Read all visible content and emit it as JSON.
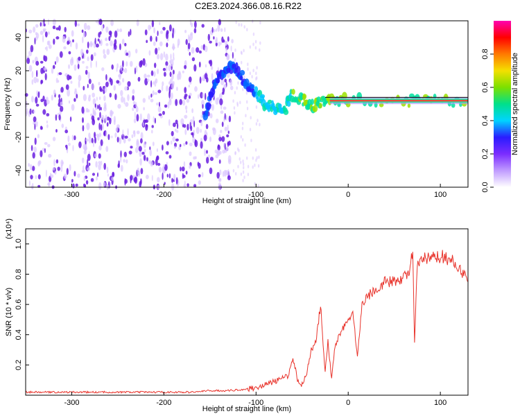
{
  "figure_title": "C2E3.2024.366.08.16.R22",
  "colors": {
    "spec_dark": "#6a1fe0",
    "spec_light": "#dcc8ff",
    "snr_line": "#e8322a"
  },
  "chart_data": [
    {
      "type": "heatmap",
      "title": "",
      "xlabel": "Height of straight line (km)",
      "ylabel": "Frequency (Hz)",
      "xlim": [
        -350,
        130
      ],
      "ylim": [
        -50,
        50
      ],
      "xticks": [
        -300,
        -200,
        -100,
        0,
        100
      ],
      "yticks": [
        -40,
        -20,
        0,
        20,
        40
      ],
      "grid": false,
      "colorbar": {
        "label": "Normalized spectral amplitude",
        "range": [
          0,
          1
        ],
        "ticks": [
          "0.0",
          "0.2",
          "0.4",
          "0.6",
          "0.8"
        ],
        "tick_values": [
          0.0,
          0.2,
          0.4,
          0.6,
          0.8
        ],
        "stops": [
          "#ffffff",
          "#c09bff",
          "#7b2cff",
          "#2a1cff",
          "#00d4ff",
          "#00e08a",
          "#7ce000",
          "#f4e000",
          "#ff7a00",
          "#ff0000",
          "#ff00b0"
        ]
      },
      "features": {
        "noise_region_x": [
          -350,
          -125
        ],
        "sparse_noise_x": [
          -125,
          -95
        ],
        "ridge": [
          [
            -155,
            -8
          ],
          [
            -148,
            8
          ],
          [
            -140,
            18
          ],
          [
            -130,
            22
          ],
          [
            -120,
            20
          ],
          [
            -110,
            12
          ],
          [
            -100,
            6
          ],
          [
            -90,
            0
          ],
          [
            -80,
            -3
          ],
          [
            -70,
            -5
          ],
          [
            -62,
            5
          ],
          [
            -50,
            3
          ],
          [
            -40,
            -1
          ],
          [
            -30,
            1
          ],
          [
            -20,
            2
          ],
          [
            0,
            2
          ],
          [
            60,
            2
          ],
          [
            90,
            2
          ],
          [
            130,
            2
          ]
        ],
        "band_center_hz": 2,
        "band_x": [
          -20,
          130
        ]
      }
    },
    {
      "type": "line",
      "title": "",
      "xlabel": "Height of straight line (km)",
      "ylabel": "SNR (10 * v/v)",
      "y_multiplier": "(x10⁴)",
      "xlim": [
        -350,
        130
      ],
      "ylim": [
        0,
        1.1
      ],
      "xticks": [
        -300,
        -200,
        -100,
        0,
        100
      ],
      "yticks": [
        0.2,
        0.4,
        0.6,
        0.8,
        1.0
      ],
      "grid": false,
      "series": [
        {
          "name": "",
          "x": [
            -350,
            -320,
            -290,
            -260,
            -230,
            -200,
            -170,
            -150,
            -130,
            -110,
            -100,
            -90,
            -80,
            -72,
            -65,
            -60,
            -55,
            -50,
            -45,
            -40,
            -35,
            -30,
            -28,
            -25,
            -22,
            -18,
            -15,
            -10,
            -5,
            0,
            5,
            10,
            15,
            20,
            30,
            40,
            50,
            60,
            65,
            70,
            72,
            75,
            80,
            90,
            100,
            110,
            120,
            130
          ],
          "y": [
            0.02,
            0.02,
            0.02,
            0.02,
            0.02,
            0.02,
            0.02,
            0.03,
            0.03,
            0.04,
            0.05,
            0.07,
            0.09,
            0.11,
            0.13,
            0.25,
            0.1,
            0.07,
            0.15,
            0.3,
            0.35,
            0.6,
            0.4,
            0.15,
            0.35,
            0.1,
            0.3,
            0.4,
            0.45,
            0.5,
            0.55,
            0.25,
            0.6,
            0.65,
            0.7,
            0.75,
            0.75,
            0.78,
            0.8,
            0.95,
            0.35,
            0.85,
            0.9,
            0.9,
            0.92,
            0.9,
            0.85,
            0.75
          ]
        }
      ]
    }
  ]
}
